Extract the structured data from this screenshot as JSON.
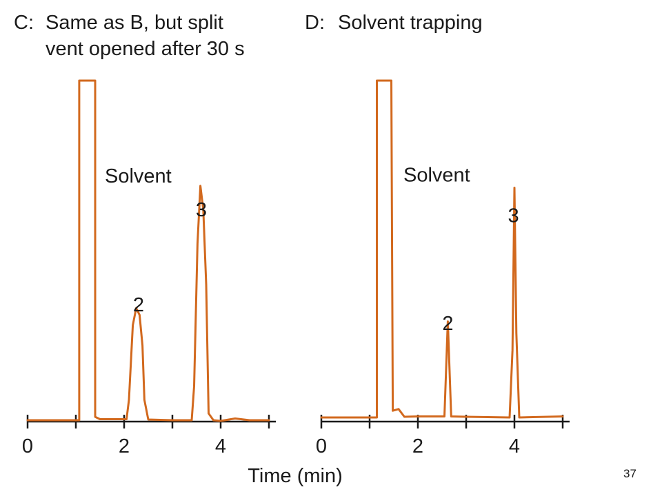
{
  "slide_number": "37",
  "chart_data": [
    {
      "type": "line",
      "panel": "C",
      "title_label": "C:",
      "title_lines": [
        "Same as B, but split",
        "vent opened after 30 s"
      ],
      "xlabel": "Time (min)",
      "xlim": [
        0,
        5
      ],
      "x_tick_labels": [
        "0",
        "2",
        "4"
      ],
      "x_tick_values": [
        0,
        2,
        4
      ],
      "x_minor_ticks": [
        1,
        3,
        5
      ],
      "annotations": [
        {
          "text": "Solvent",
          "x": 1.6,
          "y": 0.7
        },
        {
          "text": "2",
          "x": 2.3,
          "y": 0.32
        },
        {
          "text": "3",
          "x": 3.6,
          "y": 0.6
        }
      ],
      "series": [
        {
          "color": "#d2691e",
          "points": [
            [
              0.0,
              0.0
            ],
            [
              1.07,
              0.0
            ],
            [
              1.07,
              1.0
            ],
            [
              1.4,
              1.0
            ],
            [
              1.4,
              0.01
            ],
            [
              1.5,
              0.003
            ],
            [
              2.05,
              0.003
            ],
            [
              2.1,
              0.06
            ],
            [
              2.18,
              0.28
            ],
            [
              2.25,
              0.33
            ],
            [
              2.32,
              0.31
            ],
            [
              2.38,
              0.22
            ],
            [
              2.42,
              0.06
            ],
            [
              2.5,
              0.002
            ],
            [
              3.0,
              0.0
            ],
            [
              3.4,
              0.0
            ],
            [
              3.45,
              0.1
            ],
            [
              3.52,
              0.52
            ],
            [
              3.58,
              0.69
            ],
            [
              3.64,
              0.62
            ],
            [
              3.7,
              0.4
            ],
            [
              3.75,
              0.02
            ],
            [
              3.85,
              0.0
            ],
            [
              4.0,
              -0.002
            ],
            [
              4.3,
              0.005
            ],
            [
              4.6,
              0.0
            ],
            [
              5.0,
              0.0
            ]
          ]
        }
      ]
    },
    {
      "type": "line",
      "panel": "D",
      "title_label": "D:",
      "title_lines": [
        "Solvent trapping"
      ],
      "xlabel": "",
      "xlim": [
        0,
        5
      ],
      "x_tick_labels": [
        "0",
        "2",
        "4"
      ],
      "x_tick_values": [
        0,
        2,
        4
      ],
      "x_minor_ticks": [
        1,
        3,
        5
      ],
      "annotations": [
        {
          "text": "Solvent",
          "x": 1.7,
          "y": 0.7
        },
        {
          "text": "2",
          "x": 2.62,
          "y": 0.26
        },
        {
          "text": "3",
          "x": 3.98,
          "y": 0.58
        }
      ],
      "series": [
        {
          "color": "#d2691e",
          "points": [
            [
              0.0,
              0.0
            ],
            [
              1.15,
              0.0
            ],
            [
              1.15,
              1.0
            ],
            [
              1.45,
              1.0
            ],
            [
              1.48,
              0.02
            ],
            [
              1.6,
              0.025
            ],
            [
              1.72,
              0.002
            ],
            [
              2.0,
              0.003
            ],
            [
              2.55,
              0.003
            ],
            [
              2.62,
              0.285
            ],
            [
              2.69,
              0.003
            ],
            [
              3.0,
              0.002
            ],
            [
              3.9,
              0.0
            ],
            [
              3.96,
              0.2
            ],
            [
              4.0,
              0.682
            ],
            [
              4.04,
              0.25
            ],
            [
              4.1,
              0.0
            ],
            [
              5.0,
              0.003
            ]
          ]
        }
      ]
    }
  ]
}
